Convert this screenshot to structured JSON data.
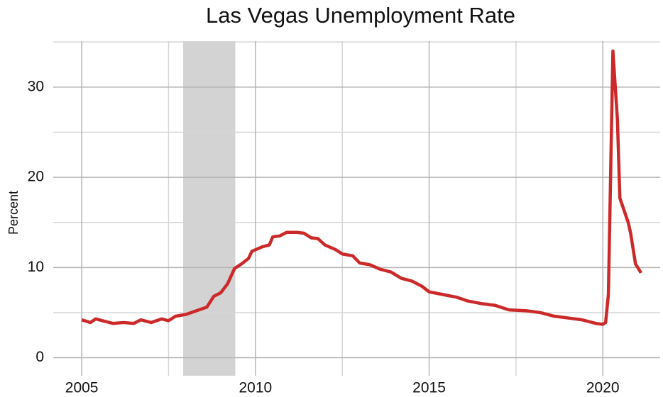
{
  "chart_data": {
    "type": "line",
    "title": "Las Vegas Unemployment Rate",
    "y_label": "Percent",
    "x": [
      2005.0,
      2005.25,
      2005.4,
      2005.6,
      2005.9,
      2006.2,
      2006.5,
      2006.7,
      2007.0,
      2007.3,
      2007.5,
      2007.7,
      2008.0,
      2008.3,
      2008.6,
      2008.8,
      2009.0,
      2009.2,
      2009.4,
      2009.6,
      2009.8,
      2009.9,
      2010.2,
      2010.4,
      2010.5,
      2010.7,
      2010.9,
      2011.2,
      2011.4,
      2011.6,
      2011.8,
      2012.0,
      2012.3,
      2012.5,
      2012.8,
      2013.0,
      2013.3,
      2013.6,
      2013.9,
      2014.2,
      2014.5,
      2014.8,
      2015.0,
      2015.4,
      2015.8,
      2016.1,
      2016.5,
      2016.9,
      2017.3,
      2017.8,
      2018.2,
      2018.6,
      2019.0,
      2019.4,
      2019.8,
      2020.0,
      2020.08,
      2020.16,
      2020.29,
      2020.42,
      2020.49,
      2020.73,
      2020.8,
      2020.94,
      2021.1
    ],
    "series": [
      {
        "name": "Unemployment rate",
        "color": "#cc2a2a",
        "values": [
          4.2,
          3.9,
          4.3,
          4.1,
          3.8,
          3.9,
          3.8,
          4.2,
          3.9,
          4.3,
          4.1,
          4.6,
          4.8,
          5.2,
          5.6,
          6.8,
          7.2,
          8.2,
          9.9,
          10.4,
          11.0,
          11.8,
          12.3,
          12.5,
          13.4,
          13.5,
          13.9,
          13.9,
          13.8,
          13.3,
          13.2,
          12.5,
          12.0,
          11.5,
          11.3,
          10.5,
          10.3,
          9.8,
          9.5,
          8.8,
          8.5,
          7.9,
          7.3,
          7.0,
          6.7,
          6.3,
          6.0,
          5.8,
          5.3,
          5.2,
          5.0,
          4.6,
          4.4,
          4.2,
          3.8,
          3.7,
          3.9,
          7.0,
          34.0,
          26.4,
          17.7,
          15.0,
          13.8,
          10.4,
          9.4
        ]
      }
    ],
    "xlim": [
      2004.18,
      2021.65
    ],
    "ylim": [
      -2,
      35.1
    ],
    "xticks": [
      2005,
      2010,
      2015,
      2020
    ],
    "yticks": [
      0,
      10,
      20,
      30
    ],
    "x_minor_gridlines": [
      2007.5,
      2012.5,
      2017.5
    ],
    "y_minor_gridlines": [
      5,
      15,
      25,
      35
    ],
    "grid": true,
    "shaded_regions": [
      {
        "start": 2007.92,
        "end": 2009.42,
        "color": "#d3d3d3"
      }
    ]
  }
}
